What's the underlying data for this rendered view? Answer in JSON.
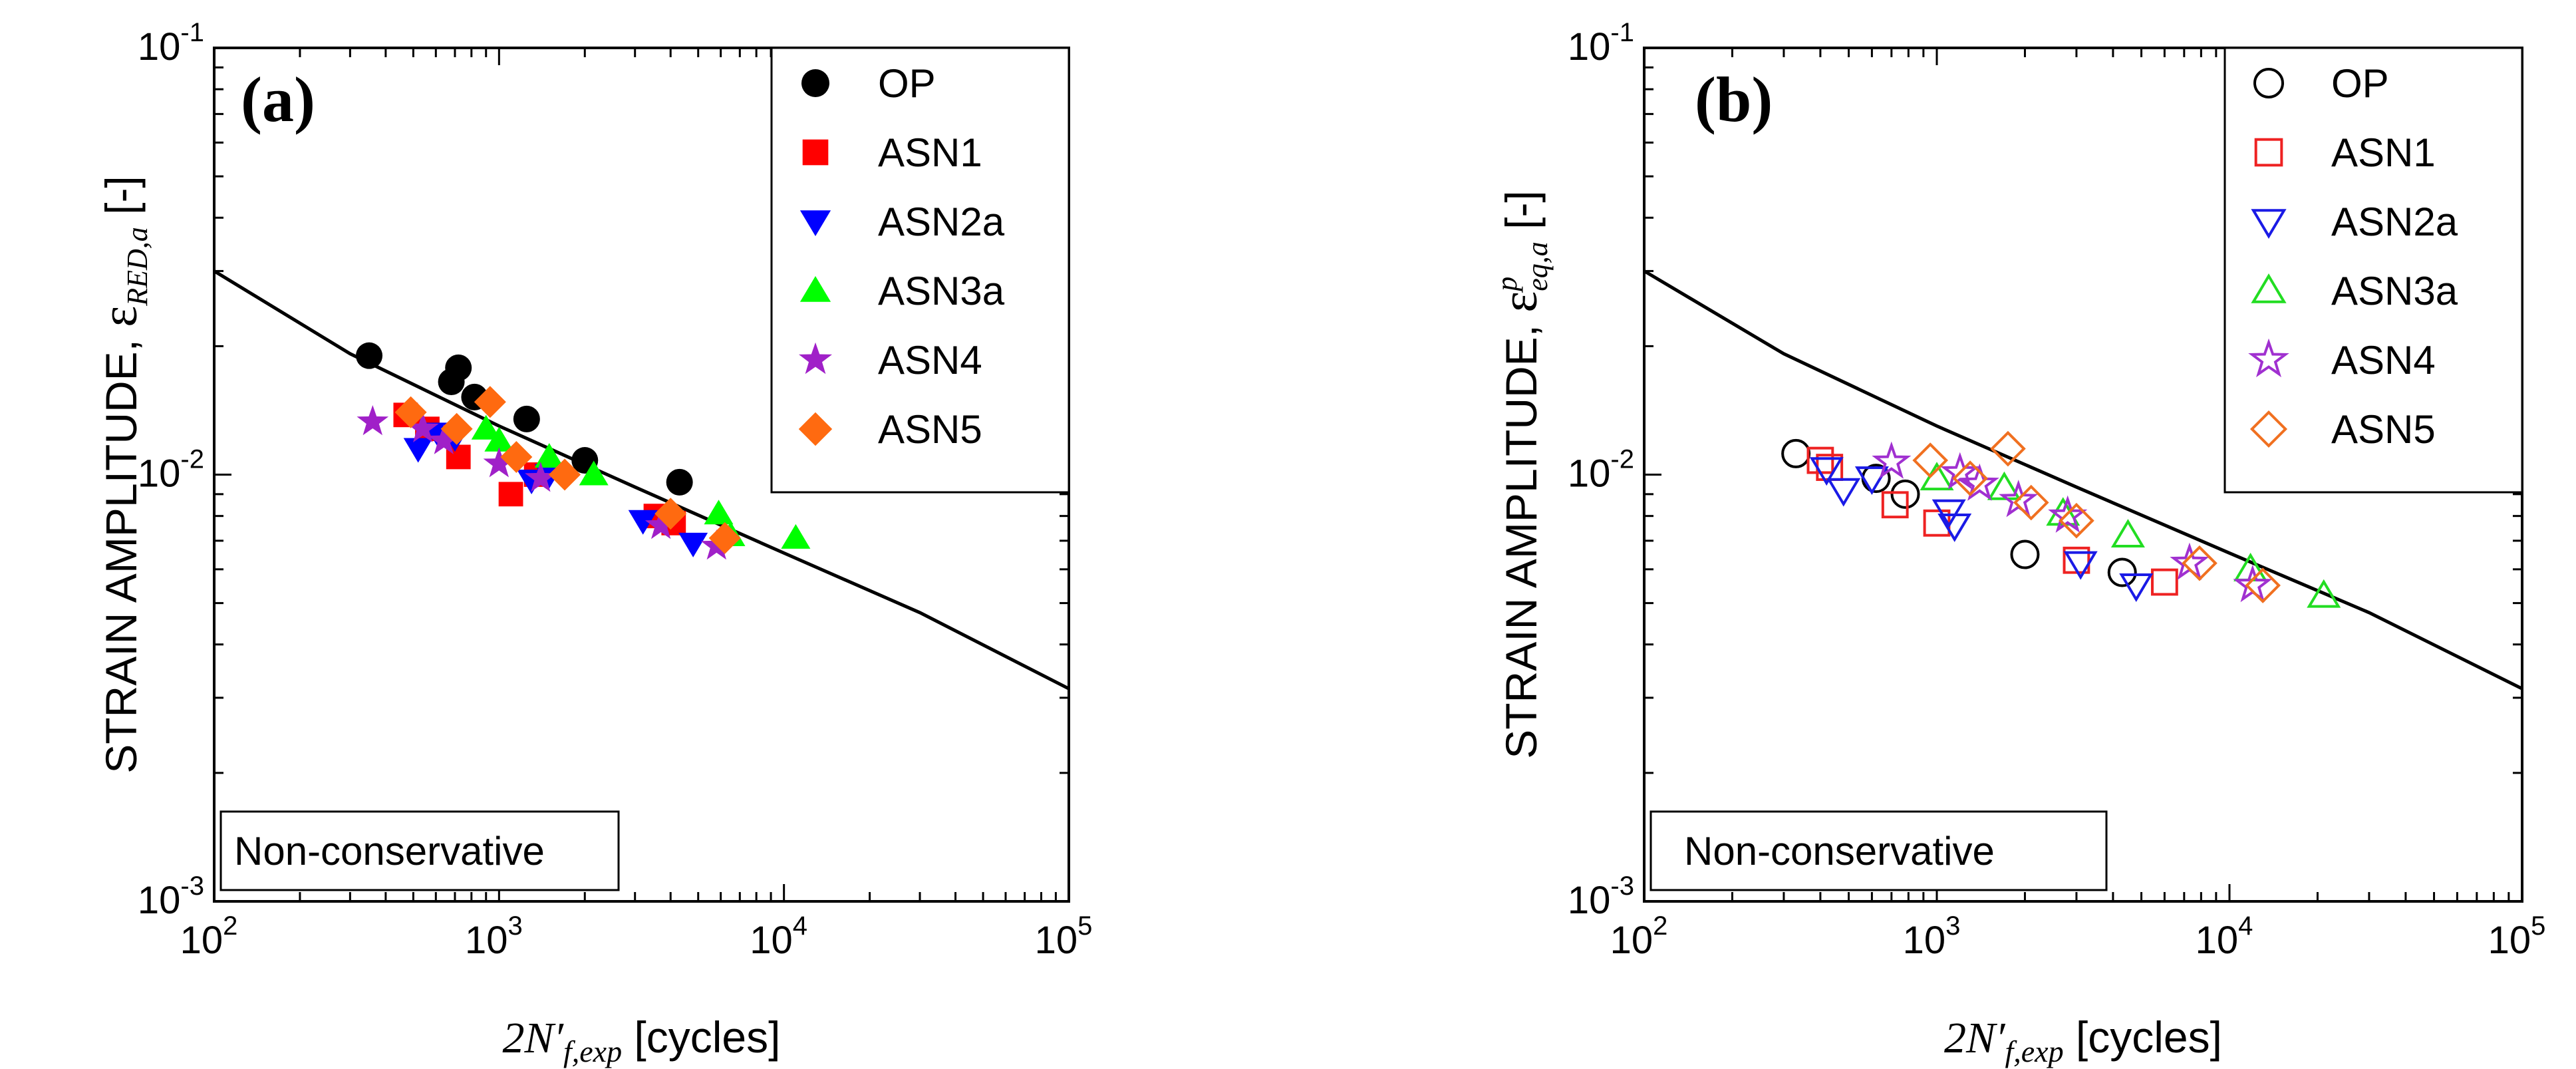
{
  "colors": {
    "axis": "#000000",
    "fit_line": "#000000",
    "background": "#ffffff",
    "series": {
      "OP": "#000000",
      "ASN1": "#ff0000",
      "ASN2a": "#0000ff",
      "ASN3a": "#00ff00",
      "ASN4": "#a020c8",
      "ASN5": "#ff6a10"
    },
    "series_open": {
      "OP": "#000000",
      "ASN1": "#ee2222",
      "ASN2a": "#1a1ae6",
      "ASN3a": "#22dd22",
      "ASN4": "#a030d0",
      "ASN5": "#f07020"
    }
  },
  "chart_data": [
    {
      "type": "scatter",
      "panel_label": "(a)",
      "annotation": "Non-conservative",
      "xscale": "log",
      "yscale": "log",
      "xlim": [
        100,
        100000
      ],
      "ylim": [
        0.001,
        0.1
      ],
      "x_ticks": [
        {
          "value": 100,
          "base": "10",
          "exp": "2"
        },
        {
          "value": 1000,
          "base": "10",
          "exp": "3"
        },
        {
          "value": 10000,
          "base": "10",
          "exp": "4"
        },
        {
          "value": 100000,
          "base": "10",
          "exp": "5"
        }
      ],
      "y_ticks": [
        {
          "value": 0.001,
          "base": "10",
          "exp": "-3"
        },
        {
          "value": 0.01,
          "base": "10",
          "exp": "-2"
        },
        {
          "value": 0.1,
          "base": "10",
          "exp": "-1"
        }
      ],
      "xlabel": {
        "math": "2N′",
        "sub": "f,exp",
        "text": " [cycles]"
      },
      "ylabel": {
        "text": "STRAIN AMPLITUDE, ",
        "symbol": "ε",
        "sub": "RED,a",
        "sup": "",
        "unit": " [-]"
      },
      "legend_position": "top-right",
      "marker_fill": "filled",
      "fit_line": {
        "x": [
          100,
          300,
          1000,
          3000,
          10000,
          30000,
          100000
        ],
        "y": [
          0.03,
          0.0192,
          0.013,
          0.00935,
          0.00655,
          0.00475,
          0.00315
        ]
      },
      "series": [
        {
          "name": "OP",
          "marker": "circle",
          "points": [
            [
              350,
              0.019
            ],
            [
              680,
              0.0165
            ],
            [
              720,
              0.0178
            ],
            [
              820,
              0.0152
            ],
            [
              1250,
              0.0135
            ],
            [
              2000,
              0.0108
            ],
            [
              4300,
              0.0096
            ]
          ]
        },
        {
          "name": "ASN1",
          "marker": "square",
          "points": [
            [
              470,
              0.0138
            ],
            [
              560,
              0.0128
            ],
            [
              720,
              0.011
            ],
            [
              1100,
              0.009
            ],
            [
              1350,
              0.01
            ],
            [
              3550,
              0.008
            ],
            [
              4100,
              0.0077
            ]
          ]
        },
        {
          "name": "ASN2a",
          "marker": "triangle-down",
          "points": [
            [
              520,
              0.0115
            ],
            [
              610,
              0.0125
            ],
            [
              700,
              0.0122
            ],
            [
              1300,
              0.0097
            ],
            [
              1500,
              0.01
            ],
            [
              3200,
              0.0078
            ],
            [
              4800,
              0.0069
            ]
          ]
        },
        {
          "name": "ASN3a",
          "marker": "triangle-up",
          "points": [
            [
              900,
              0.0128
            ],
            [
              1000,
              0.012
            ],
            [
              1500,
              0.011
            ],
            [
              2150,
              0.01
            ],
            [
              5900,
              0.0081
            ],
            [
              6500,
              0.0072
            ],
            [
              11000,
              0.0071
            ]
          ]
        },
        {
          "name": "ASN4",
          "marker": "star",
          "points": [
            [
              360,
              0.0133
            ],
            [
              540,
              0.0128
            ],
            [
              640,
              0.012
            ],
            [
              1000,
              0.0106
            ],
            [
              1400,
              0.0098
            ],
            [
              3700,
              0.0076
            ],
            [
              5800,
              0.0068
            ]
          ]
        },
        {
          "name": "ASN5",
          "marker": "diamond",
          "points": [
            [
              490,
              0.014
            ],
            [
              710,
              0.0128
            ],
            [
              930,
              0.0148
            ],
            [
              1150,
              0.011
            ],
            [
              1700,
              0.01
            ],
            [
              4000,
              0.0081
            ],
            [
              6200,
              0.0071
            ]
          ]
        }
      ]
    },
    {
      "type": "scatter",
      "panel_label": "(b)",
      "annotation": "Non-conservative",
      "xscale": "log",
      "yscale": "log",
      "xlim": [
        100,
        100000
      ],
      "ylim": [
        0.001,
        0.1
      ],
      "x_ticks": [
        {
          "value": 100,
          "base": "10",
          "exp": "2"
        },
        {
          "value": 1000,
          "base": "10",
          "exp": "3"
        },
        {
          "value": 10000,
          "base": "10",
          "exp": "4"
        },
        {
          "value": 100000,
          "base": "10",
          "exp": "5"
        }
      ],
      "y_ticks": [
        {
          "value": 0.001,
          "base": "10",
          "exp": "-3"
        },
        {
          "value": 0.01,
          "base": "10",
          "exp": "-2"
        },
        {
          "value": 0.1,
          "base": "10",
          "exp": "-1"
        }
      ],
      "xlabel": {
        "math": "2N′",
        "sub": "f,exp",
        "text": " [cycles]"
      },
      "ylabel": {
        "text": "STRAIN AMPLITUDE, ",
        "symbol": "ε",
        "sub": "eq,a",
        "sup": "p",
        "unit": " [-]"
      },
      "legend_position": "top-right",
      "marker_fill": "open",
      "fit_line": {
        "x": [
          100,
          300,
          1000,
          3000,
          10000,
          30000,
          100000
        ],
        "y": [
          0.03,
          0.0192,
          0.013,
          0.00935,
          0.00655,
          0.00475,
          0.00315
        ]
      },
      "series": [
        {
          "name": "OP",
          "marker": "circle",
          "points": [
            [
              330,
              0.0112
            ],
            [
              620,
              0.0098
            ],
            [
              780,
              0.009
            ],
            [
              2000,
              0.0065
            ],
            [
              4300,
              0.0059
            ]
          ]
        },
        {
          "name": "ASN1",
          "marker": "square",
          "points": [
            [
              400,
              0.0108
            ],
            [
              430,
              0.0104
            ],
            [
              720,
              0.0085
            ],
            [
              1000,
              0.0077
            ],
            [
              3000,
              0.0063
            ],
            [
              6000,
              0.0056
            ]
          ]
        },
        {
          "name": "ASN2a",
          "marker": "triangle-down",
          "points": [
            [
              420,
              0.0103
            ],
            [
              480,
              0.0092
            ],
            [
              600,
              0.0098
            ],
            [
              1100,
              0.0082
            ],
            [
              1150,
              0.0076
            ],
            [
              3100,
              0.0062
            ],
            [
              4800,
              0.0055
            ]
          ]
        },
        {
          "name": "ASN3a",
          "marker": "triangle-up",
          "points": [
            [
              1000,
              0.0098
            ],
            [
              1700,
              0.0093
            ],
            [
              2700,
              0.0081
            ],
            [
              4500,
              0.0072
            ],
            [
              11800,
              0.006
            ],
            [
              21000,
              0.0052
            ]
          ]
        },
        {
          "name": "ASN4",
          "marker": "star",
          "points": [
            [
              700,
              0.0107
            ],
            [
              1200,
              0.0101
            ],
            [
              1400,
              0.0095
            ],
            [
              1900,
              0.0087
            ],
            [
              2800,
              0.008
            ],
            [
              7300,
              0.0062
            ],
            [
              12000,
              0.0055
            ]
          ]
        },
        {
          "name": "ASN5",
          "marker": "diamond",
          "points": [
            [
              950,
              0.0108
            ],
            [
              1300,
              0.0098
            ],
            [
              1750,
              0.0115
            ],
            [
              2100,
              0.0086
            ],
            [
              3000,
              0.0078
            ],
            [
              7900,
              0.0062
            ],
            [
              13000,
              0.0055
            ]
          ]
        }
      ]
    }
  ]
}
